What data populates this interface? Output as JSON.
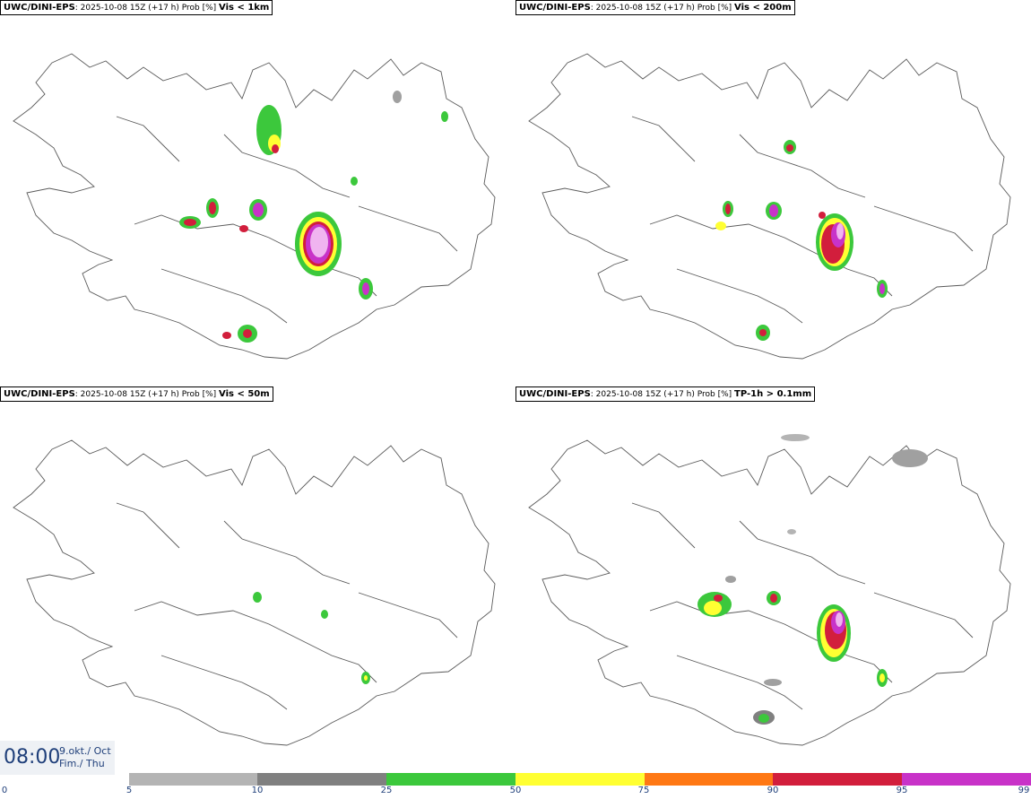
{
  "panels": [
    {
      "model": "UWC/DINI-EPS",
      "run": ": 2025-10-08 15Z (+17 h) Prob [%] ",
      "variable": "Vis < 1km"
    },
    {
      "model": "UWC/DINI-EPS",
      "run": ": 2025-10-08 15Z (+17 h) Prob [%] ",
      "variable": "Vis < 200m"
    },
    {
      "model": "UWC/DINI-EPS",
      "run": ": 2025-10-08 15Z (+17 h) Prob [%] ",
      "variable": "Vis < 50m"
    },
    {
      "model": "UWC/DINI-EPS",
      "run": ": 2025-10-08 15Z (+17 h) Prob [%] ",
      "variable": "TP-1h > 0.1mm"
    }
  ],
  "time": {
    "clock": "08:00",
    "date_line": "9.okt./ Oct",
    "day_line": "Fim./ Thu"
  },
  "legend": {
    "ticks": [
      "0",
      "5",
      "10",
      "25",
      "50",
      "75",
      "90",
      "95",
      "99"
    ],
    "colors": [
      "#b4b4b4",
      "#808080",
      "#3cc83c",
      "#ffff32",
      "#ff7814",
      "#d21e3c",
      "#c832c8",
      "#f0b4f0"
    ]
  }
}
